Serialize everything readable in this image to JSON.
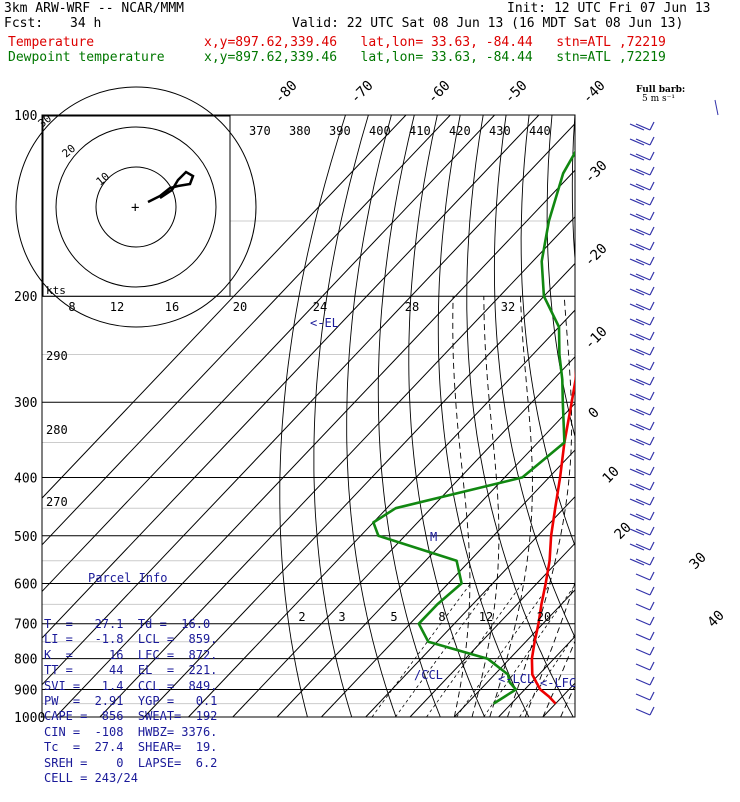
{
  "header": {
    "model": "3km ARW-WRF -- NCAR/MMM",
    "init": "Init: 12 UTC Fri 07 Jun 13",
    "fcst_label": "Fcst:",
    "fcst_value": "34 h",
    "valid": "Valid: 22 UTC Sat 08 Jun 13 (16 MDT Sat 08 Jun 13)",
    "temp_label": "Temperature",
    "dew_label": "Dewpoint temperature",
    "temp_info": "x,y=897.62,339.46   lat,lon= 33.63, -84.44   stn=ATL ,72219",
    "dew_info": "x,y=897.62,339.46   lat,lon= 33.63, -84.44   stn=ATL ,72219"
  },
  "colors": {
    "temperature": "#ee0000",
    "dewpoint": "#118811",
    "annotation": "#1a1a99",
    "wind_barbs": "#3333aa"
  },
  "barb_legend": {
    "line1": "Full barb:",
    "line2": "5 m s⁻¹"
  },
  "hodograph": {
    "units": "kts",
    "rings": [
      "10",
      "20",
      "30"
    ]
  },
  "parcel_info": {
    "title": "Parcel Info",
    "rows": [
      "T  =   27.1  Td =  16.0",
      "LI =   -1.8  LCL =  859.",
      "K  =     16  LFC =  872.",
      "TT =     44  EL  =  221.",
      "SVI =   1.4  CCL =  849.",
      "PW  =  2.91  YGP =   0.1",
      "CAPE =  856  SWEAT=  192",
      "CIN =  -108  HWBZ= 3376.",
      "Tc  =  27.4  SHEAR=  19.",
      "SREH =    0  LAPSE=  6.2",
      "CELL = 243/24"
    ]
  },
  "annotations": {
    "el": "<-EL",
    "lcl": "<-LCL",
    "lfc": "<-LFC",
    "ccl": "/CCL",
    "m": "M"
  },
  "chart_data": {
    "type": "line",
    "subtype": "skew-T log-P",
    "y_axis_label": "",
    "pressure_ticks": [
      100,
      200,
      300,
      400,
      500,
      600,
      700,
      800,
      900,
      1000
    ],
    "ylim": [
      100,
      1000
    ],
    "y_scale": "log",
    "temp_axis_labels_top": [
      "-80",
      "-70",
      "-60",
      "-50",
      "-40"
    ],
    "temp_axis_labels_right": [
      "-30",
      "-20",
      "-10",
      "0",
      "10",
      "20",
      "30",
      "40"
    ],
    "theta_labels": [
      "370",
      "380",
      "390",
      "400",
      "410",
      "420",
      "430",
      "440"
    ],
    "mixing_ratio_labels_upper": [
      "8",
      "12",
      "16",
      "20",
      "24",
      "28",
      "32"
    ],
    "mixing_ratio_labels_lower": [
      "2",
      "3",
      "5",
      "8",
      "12",
      "20"
    ],
    "theta_e_labels": [
      "290",
      "280",
      "270"
    ],
    "grid": true,
    "series": [
      {
        "name": "Temperature",
        "pressure": [
          950,
          925,
          900,
          875,
          850,
          800,
          750,
          700,
          650,
          600,
          550,
          500,
          450,
          400,
          350,
          300,
          275,
          250,
          225,
          200,
          175,
          150,
          125,
          100
        ],
        "temperature": [
          30,
          27,
          23.5,
          21,
          18.5,
          15,
          12,
          9,
          5.5,
          2,
          -2,
          -7,
          -12,
          -17.5,
          -24,
          -31,
          -35,
          -40,
          -45,
          -52,
          -58,
          -63,
          -70,
          -79
        ]
      },
      {
        "name": "Dewpoint temperature",
        "pressure": [
          950,
          925,
          900,
          875,
          850,
          800,
          750,
          700,
          650,
          600,
          550,
          500,
          475,
          450,
          400,
          350,
          300,
          275,
          250,
          225,
          200,
          175,
          150,
          125,
          100
        ],
        "dewpoint": [
          16,
          17,
          18,
          15,
          13,
          5,
          -12,
          -18,
          -18,
          -17,
          -23,
          -46,
          -50,
          -48,
          -26,
          -24,
          -33,
          -38,
          -44,
          -50,
          -60,
          -68,
          -75,
          -82,
          -87
        ]
      }
    ]
  }
}
